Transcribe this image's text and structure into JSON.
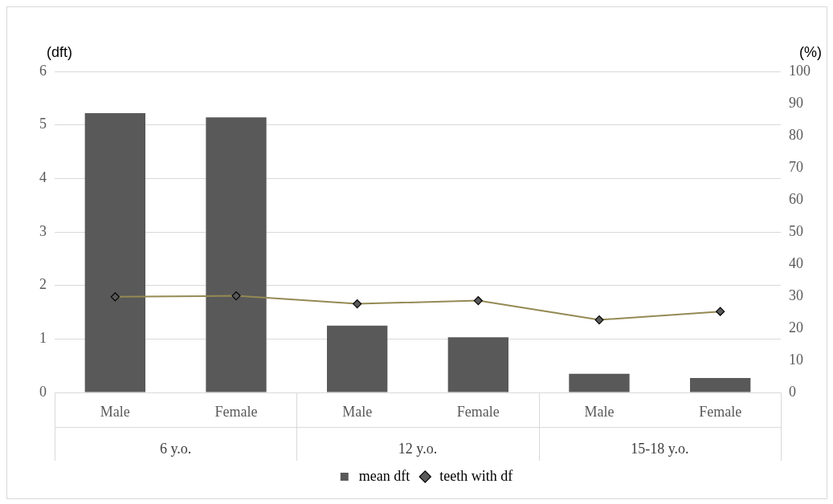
{
  "chart_data": {
    "type": "bar",
    "ylabel": "(dft)",
    "y2label": "(%)",
    "categories": [
      "Male",
      "Female",
      "Male",
      "Female",
      "Male",
      "Female"
    ],
    "annotations": [
      "6 y.o.",
      "12 y.o.",
      "15-18 y.o."
    ],
    "series": [
      {
        "name": "mean dft",
        "color": "#595959",
        "values": [
          5.22,
          5.14,
          1.25,
          1.03,
          0.35,
          0.27
        ]
      },
      {
        "name": "teeth with df",
        "type": "line",
        "axis": "y2",
        "color": "#948a54",
        "marker": "diamond",
        "line_style": "solid",
        "values": [
          29.8,
          30.1,
          27.6,
          28.6,
          22.6,
          25.2
        ]
      }
    ],
    "ylim": [
      0,
      6
    ],
    "yticks": [
      0,
      1,
      2,
      3,
      4,
      5,
      6
    ],
    "y2lim": [
      0,
      100
    ],
    "y2ticks": [
      0,
      10,
      20,
      30,
      40,
      50,
      60,
      70,
      80,
      90,
      100
    ],
    "grid": "y",
    "legend": "bottom"
  }
}
